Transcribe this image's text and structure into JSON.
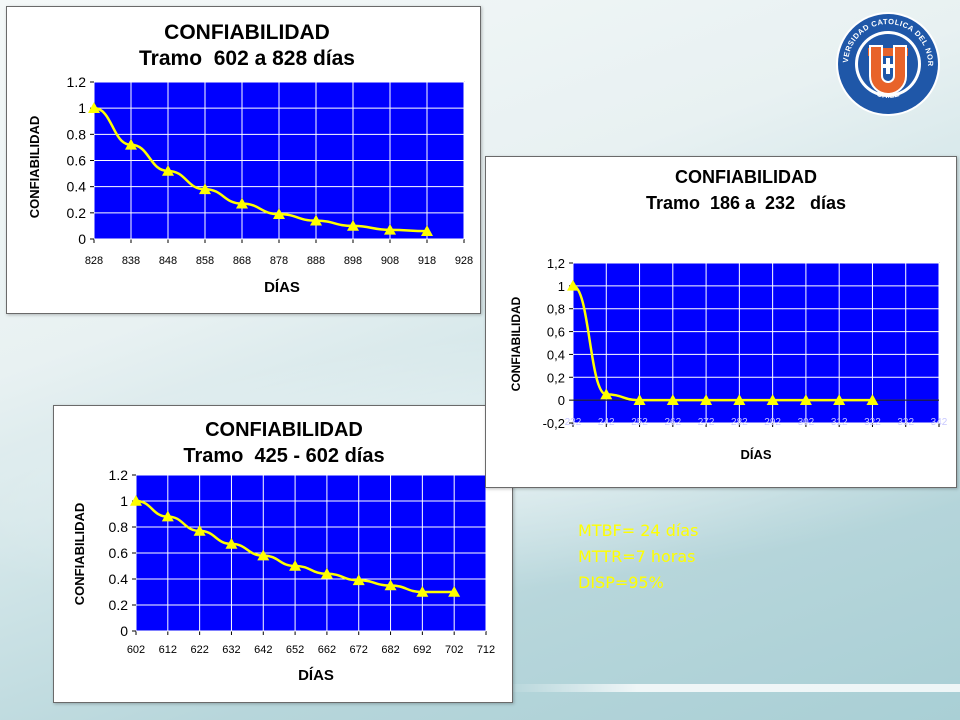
{
  "stats": {
    "mtbf": "MTBF= 24 días",
    "mttr": "MTTR=7 horas",
    "disp": "DISP=95%"
  },
  "logo": {
    "text_top": "UNIVERSIDAD CATOLICA DEL NORTE",
    "text_bottom": "CHILE",
    "letter": "U",
    "colors": {
      "ring": "#1f57a8",
      "inner": "#e8632a",
      "white": "#ffffff"
    }
  },
  "colors": {
    "plot_bg": "#0000ff",
    "grid": "#ffffff",
    "series": "#ffff00"
  },
  "chart_data": [
    {
      "type": "line",
      "title": "CONFIABILIDAD",
      "subtitle": "Tramo  602 a 828 días",
      "xlabel": "DÍAS",
      "ylabel": "CONFIABILIDAD",
      "x_ticks": [
        "828",
        "838",
        "848",
        "858",
        "868",
        "878",
        "888",
        "898",
        "908",
        "918",
        "928"
      ],
      "y_ticks": [
        "0",
        "0.2",
        "0.4",
        "0.6",
        "0.8",
        "1",
        "1.2"
      ],
      "xlim": [
        828,
        928
      ],
      "ylim": [
        0,
        1.2
      ],
      "grid": true,
      "x": [
        828,
        838,
        848,
        858,
        868,
        878,
        888,
        898,
        908,
        918
      ],
      "y": [
        1.0,
        0.72,
        0.52,
        0.38,
        0.27,
        0.19,
        0.14,
        0.1,
        0.07,
        0.06
      ]
    },
    {
      "type": "line",
      "title": "CONFIABILIDAD",
      "subtitle": "Tramo  186 a  232   días",
      "xlabel": "DÍAS",
      "ylabel": "CONFIABILIDAD",
      "x_ticks": [
        "232",
        "242",
        "252",
        "262",
        "272",
        "282",
        "292",
        "302",
        "312",
        "322",
        "332",
        "342"
      ],
      "y_ticks": [
        "-0,2",
        "0",
        "0,2",
        "0,4",
        "0,6",
        "0,8",
        "1",
        "1,2"
      ],
      "xlim": [
        232,
        342
      ],
      "ylim": [
        -0.2,
        1.2
      ],
      "grid": true,
      "x": [
        232,
        242,
        252,
        262,
        272,
        282,
        292,
        302,
        312,
        322
      ],
      "y": [
        1.0,
        0.05,
        0.0,
        0.0,
        0.0,
        0.0,
        0.0,
        0.0,
        0.0,
        0.0
      ]
    },
    {
      "type": "line",
      "title": "CONFIABILIDAD",
      "subtitle": "Tramo  425 - 602 días",
      "xlabel": "DÍAS",
      "ylabel": "CONFIABILIDAD",
      "x_ticks": [
        "602",
        "612",
        "622",
        "632",
        "642",
        "652",
        "662",
        "672",
        "682",
        "692",
        "702",
        "712"
      ],
      "y_ticks": [
        "0",
        "0.2",
        "0.4",
        "0.6",
        "0.8",
        "1",
        "1.2"
      ],
      "xlim": [
        602,
        712
      ],
      "ylim": [
        0,
        1.2
      ],
      "grid": true,
      "x": [
        602,
        612,
        622,
        632,
        642,
        652,
        662,
        672,
        682,
        692,
        702
      ],
      "y": [
        1.0,
        0.88,
        0.77,
        0.67,
        0.58,
        0.5,
        0.44,
        0.39,
        0.35,
        0.3,
        0.3
      ]
    }
  ]
}
